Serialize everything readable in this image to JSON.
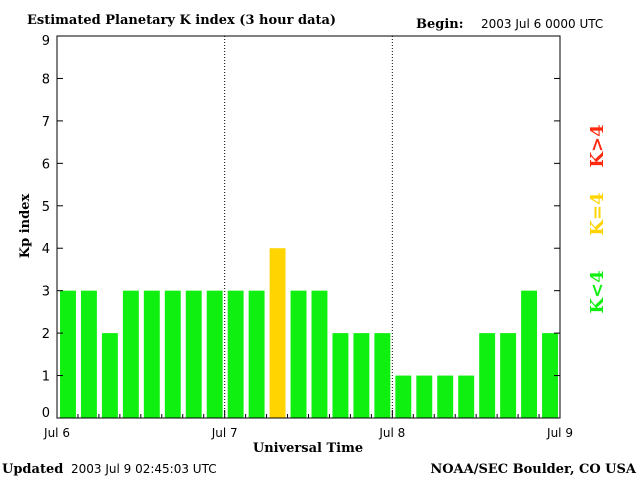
{
  "header": {
    "title": "Estimated Planetary K index (3 hour data)",
    "begin_label": "Begin:",
    "begin_value": "2003 Jul 6 0000 UTC"
  },
  "footer": {
    "updated_label": "Updated",
    "updated_value": "2003 Jul  9 02:45:03 UTC",
    "credit": "NOAA/SEC Boulder, CO USA"
  },
  "colors": {
    "green": "#10f010",
    "yellow": "#ffd400",
    "red": "#ff2a10"
  },
  "chart_data": {
    "type": "bar",
    "xlabel": "Universal Time",
    "ylabel": "Kp index",
    "ylim": [
      0,
      9
    ],
    "yticks": [
      "0",
      "1",
      "2",
      "3",
      "4",
      "5",
      "6",
      "7",
      "8",
      "9"
    ],
    "day_labels": [
      "Jul 6",
      "Jul 7",
      "Jul 8",
      "Jul 9"
    ],
    "bars_per_day": 8,
    "grid": "vertical dotted lines at day boundaries",
    "values": [
      3,
      3,
      2,
      3,
      3,
      3,
      3,
      3,
      3,
      3,
      4,
      3,
      3,
      2,
      2,
      2,
      1,
      1,
      1,
      1,
      2,
      2,
      3,
      2
    ],
    "legend": {
      "placement": "right, vertical",
      "items": [
        {
          "label": "K<4",
          "color": "#10f010"
        },
        {
          "label": "K=4",
          "color": "#ffd400"
        },
        {
          "label": "K>4",
          "color": "#ff2a10"
        }
      ]
    }
  }
}
